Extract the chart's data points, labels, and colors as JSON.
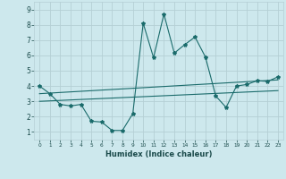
{
  "xlabel": "Humidex (Indice chaleur)",
  "bg_color": "#cde8ed",
  "grid_color": "#b5cfd5",
  "line_color": "#1a6b6b",
  "xlim": [
    -0.5,
    23.5
  ],
  "ylim": [
    0.5,
    9.5
  ],
  "xticks": [
    0,
    1,
    2,
    3,
    4,
    5,
    6,
    7,
    8,
    9,
    10,
    11,
    12,
    13,
    14,
    15,
    16,
    17,
    18,
    19,
    20,
    21,
    22,
    23
  ],
  "yticks": [
    1,
    2,
    3,
    4,
    5,
    6,
    7,
    8,
    9
  ],
  "curve1_x": [
    0,
    1,
    2,
    3,
    4,
    5,
    6,
    7,
    8,
    9,
    10,
    11,
    12,
    13,
    14,
    15,
    16,
    17,
    18,
    19,
    20,
    21,
    22,
    23
  ],
  "curve1_y": [
    4.0,
    3.5,
    2.8,
    2.7,
    2.8,
    1.7,
    1.65,
    1.1,
    1.1,
    2.2,
    8.1,
    5.85,
    8.7,
    6.15,
    6.7,
    7.2,
    5.9,
    3.35,
    2.6,
    4.0,
    4.1,
    4.35,
    4.3,
    4.6
  ],
  "curve2_x": [
    0,
    23
  ],
  "curve2_y": [
    3.5,
    4.4
  ],
  "curve3_x": [
    0,
    23
  ],
  "curve3_y": [
    3.0,
    3.7
  ]
}
